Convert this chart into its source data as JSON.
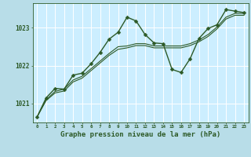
{
  "background_color": "#b8dde8",
  "plot_bg_color": "#cceeff",
  "grid_color": "#ffffff",
  "line_color": "#2d5a27",
  "xlabel": "Graphe pression niveau de la mer (hPa)",
  "xlabel_fontsize": 6.5,
  "yticks": [
    1021,
    1022,
    1023
  ],
  "ylim": [
    1020.5,
    1023.65
  ],
  "xlim": [
    -0.5,
    23.5
  ],
  "xticks": [
    0,
    1,
    2,
    3,
    4,
    5,
    6,
    7,
    8,
    9,
    10,
    11,
    12,
    13,
    14,
    15,
    16,
    17,
    18,
    19,
    20,
    21,
    22,
    23
  ],
  "series": [
    {
      "x": [
        0,
        1,
        2,
        3,
        4,
        5,
        6,
        7,
        8,
        9,
        10,
        11,
        12,
        13,
        14,
        15,
        16,
        17,
        18,
        19,
        20,
        21,
        22,
        23
      ],
      "y": [
        1020.65,
        1021.15,
        1021.4,
        1021.38,
        1021.75,
        1021.8,
        1022.05,
        1022.35,
        1022.7,
        1022.88,
        1023.28,
        1023.18,
        1022.82,
        1022.6,
        1022.58,
        1021.9,
        1021.82,
        1022.18,
        1022.72,
        1022.98,
        1023.08,
        1023.48,
        1023.44,
        1023.4
      ],
      "has_markers": true,
      "linewidth": 1.0,
      "markersize": 2.5,
      "marker": "D"
    },
    {
      "x": [
        0,
        1,
        2,
        3,
        4,
        5,
        6,
        7,
        8,
        9,
        10,
        11,
        12,
        13,
        14,
        15,
        16,
        17,
        18,
        19,
        20,
        21,
        22,
        23
      ],
      "y": [
        1020.65,
        1021.1,
        1021.32,
        1021.38,
        1021.62,
        1021.72,
        1021.92,
        1022.12,
        1022.32,
        1022.5,
        1022.52,
        1022.58,
        1022.58,
        1022.52,
        1022.52,
        1022.52,
        1022.52,
        1022.58,
        1022.68,
        1022.82,
        1023.02,
        1023.28,
        1023.38,
        1023.38
      ],
      "has_markers": false,
      "linewidth": 0.8
    },
    {
      "x": [
        0,
        1,
        2,
        3,
        4,
        5,
        6,
        7,
        8,
        9,
        10,
        11,
        12,
        13,
        14,
        15,
        16,
        17,
        18,
        19,
        20,
        21,
        22,
        23
      ],
      "y": [
        1020.65,
        1021.08,
        1021.28,
        1021.33,
        1021.57,
        1021.67,
        1021.87,
        1022.07,
        1022.27,
        1022.43,
        1022.47,
        1022.53,
        1022.53,
        1022.47,
        1022.47,
        1022.47,
        1022.47,
        1022.53,
        1022.63,
        1022.77,
        1022.97,
        1023.23,
        1023.33,
        1023.33
      ],
      "has_markers": false,
      "linewidth": 0.8
    }
  ]
}
